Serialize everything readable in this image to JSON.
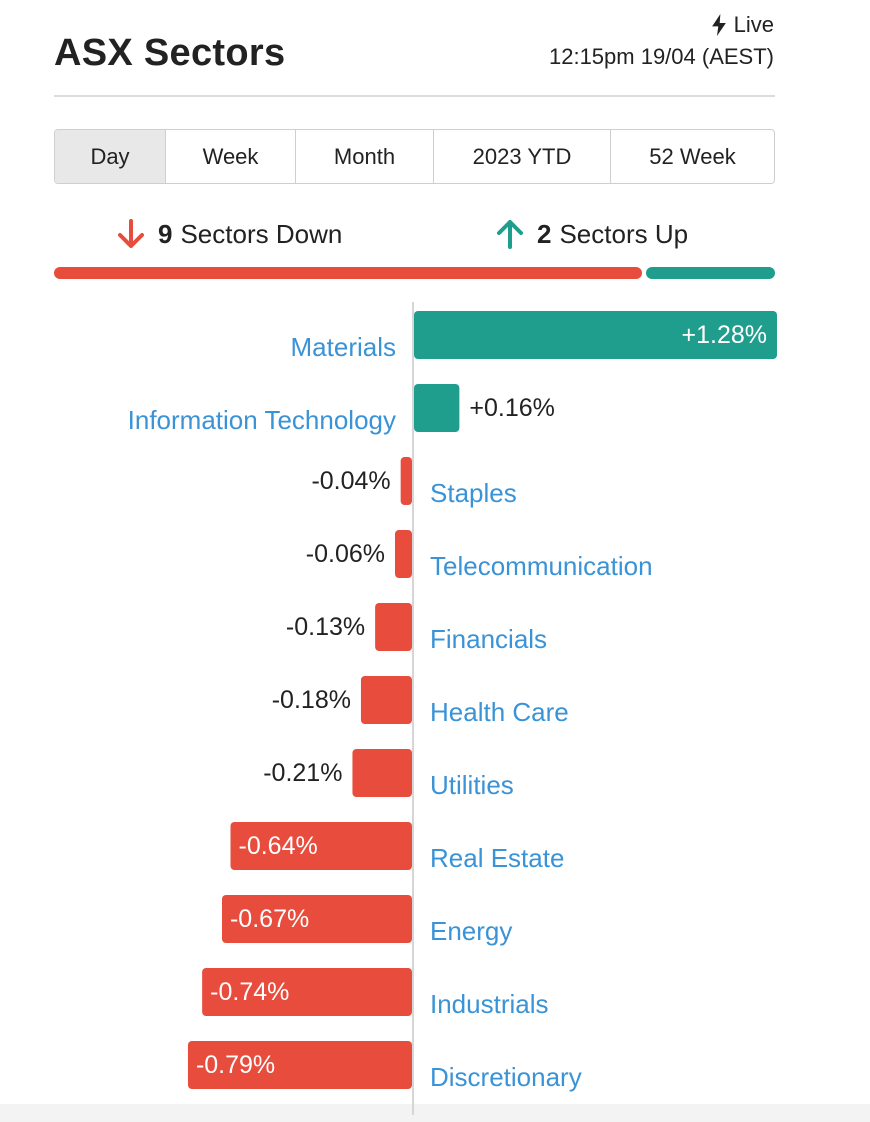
{
  "header": {
    "title": "ASX Sectors",
    "live_label": "Live",
    "timestamp": "12:15pm 19/04 (AEST)"
  },
  "period_tabs": [
    {
      "label": "Day",
      "active": true
    },
    {
      "label": "Week",
      "active": false
    },
    {
      "label": "Month",
      "active": false
    },
    {
      "label": "2023 YTD",
      "active": false
    },
    {
      "label": "52 Week",
      "active": false
    }
  ],
  "summary": {
    "down_count": "9",
    "down_label": "Sectors Down",
    "up_count": "2",
    "up_label": "Sectors Up",
    "down_fraction": 0.818
  },
  "colors": {
    "up": "#1f9e8e",
    "down": "#e74c3c",
    "category_label": "#3a93d6"
  },
  "icons": {
    "live": "lightning-icon",
    "down": "arrow-down-icon",
    "up": "arrow-up-icon"
  },
  "chart_data": {
    "type": "bar",
    "orientation": "horizontal-diverging",
    "categories": [
      "Materials",
      "Information Technology",
      "Staples",
      "Telecommunication",
      "Financials",
      "Health Care",
      "Utilities",
      "Real Estate",
      "Energy",
      "Industrials",
      "Discretionary"
    ],
    "values": [
      1.28,
      0.16,
      -0.04,
      -0.06,
      -0.13,
      -0.18,
      -0.21,
      -0.64,
      -0.67,
      -0.74,
      -0.79
    ],
    "value_labels": [
      "+1.28%",
      "+0.16%",
      "-0.04%",
      "-0.06%",
      "-0.13%",
      "-0.18%",
      "-0.21%",
      "-0.64%",
      "-0.67%",
      "-0.74%",
      "-0.79%"
    ],
    "unit": "%"
  }
}
